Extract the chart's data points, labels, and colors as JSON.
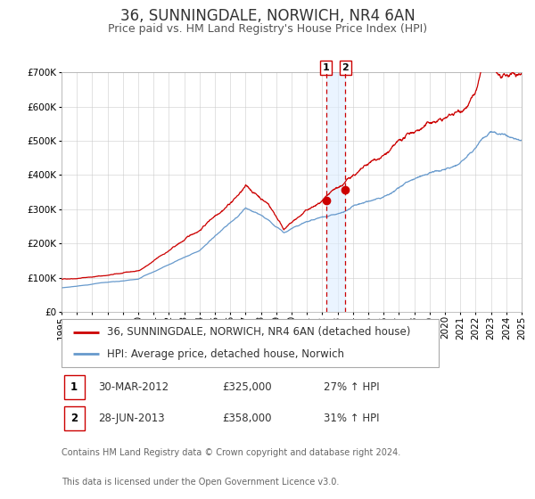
{
  "title": "36, SUNNINGDALE, NORWICH, NR4 6AN",
  "subtitle": "Price paid vs. HM Land Registry's House Price Index (HPI)",
  "legend_line1": "36, SUNNINGDALE, NORWICH, NR4 6AN (detached house)",
  "legend_line2": "HPI: Average price, detached house, Norwich",
  "footer_line1": "Contains HM Land Registry data © Crown copyright and database right 2024.",
  "footer_line2": "This data is licensed under the Open Government Licence v3.0.",
  "transaction1_date": "30-MAR-2012",
  "transaction1_price": "£325,000",
  "transaction1_hpi": "27% ↑ HPI",
  "transaction2_date": "28-JUN-2013",
  "transaction2_price": "£358,000",
  "transaction2_hpi": "31% ↑ HPI",
  "sale1_year": 2012.25,
  "sale1_value": 325000,
  "sale2_year": 2013.5,
  "sale2_value": 358000,
  "red_line_color": "#cc0000",
  "blue_line_color": "#6699cc",
  "grid_color": "#cccccc",
  "shade_color": "#ddeeff",
  "dashed_line_color": "#cc0000",
  "ylim": [
    0,
    700000
  ],
  "xlim_start": 1995,
  "xlim_end": 2025,
  "title_fontsize": 12,
  "subtitle_fontsize": 9,
  "tick_fontsize": 7.5,
  "legend_fontsize": 8.5,
  "footer_fontsize": 7
}
